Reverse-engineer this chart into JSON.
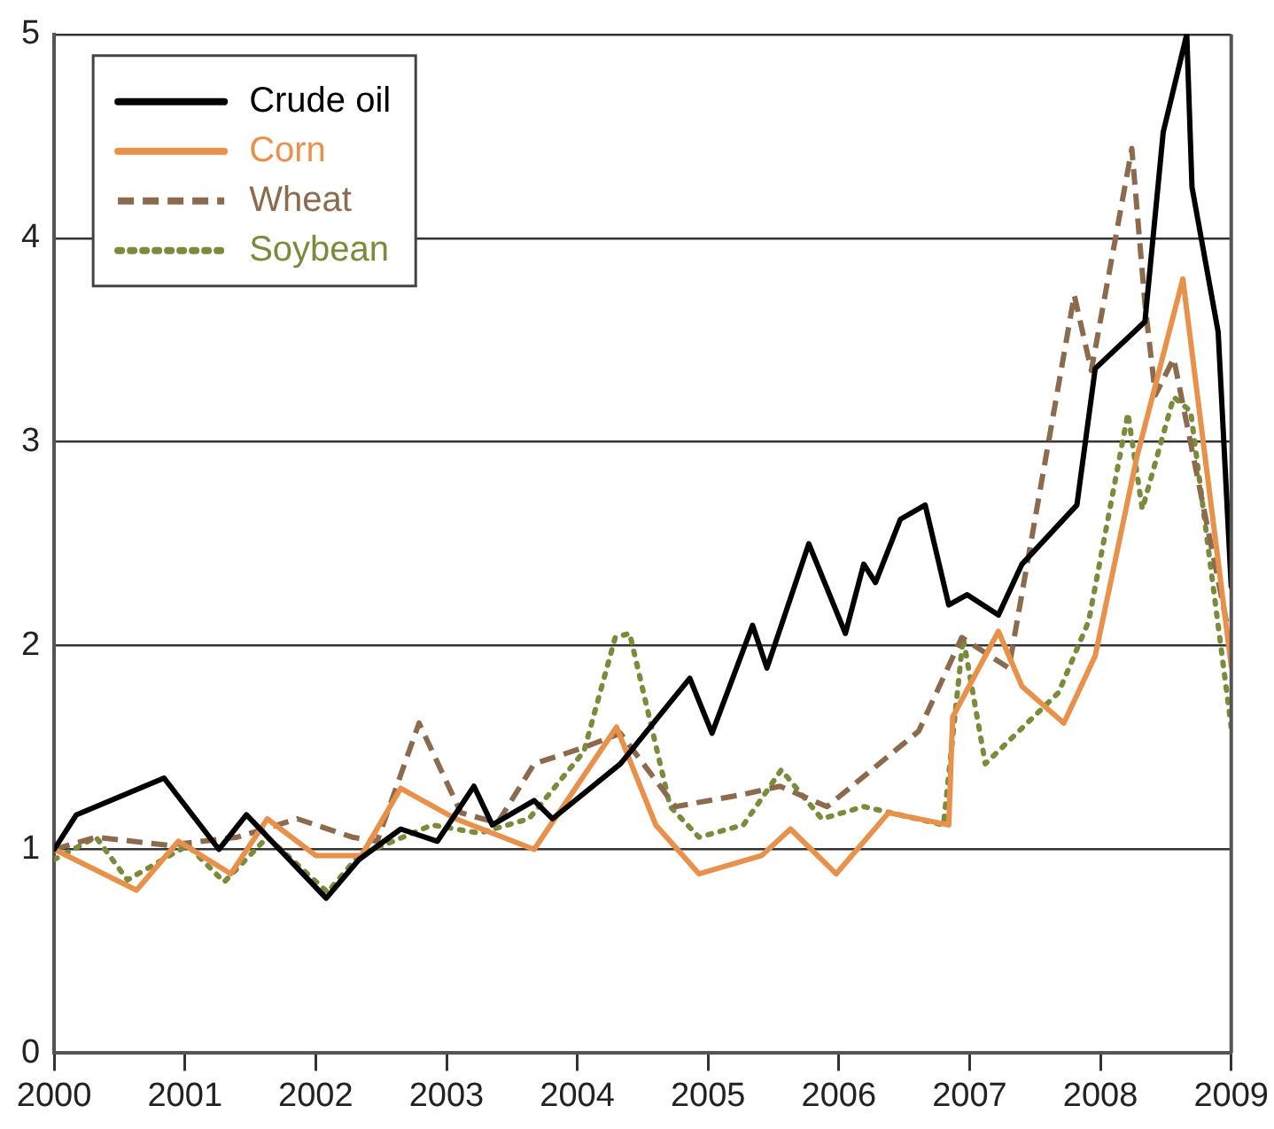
{
  "chart_data": {
    "type": "line",
    "xlim": [
      2000,
      2009
    ],
    "xticks": [
      2000,
      2001,
      2002,
      2003,
      2004,
      2005,
      2006,
      2007,
      2008,
      2009
    ],
    "ylim": [
      0,
      5
    ],
    "yticks": [
      0,
      1,
      2,
      3,
      4,
      5
    ],
    "grid": "y",
    "legend": "top left",
    "marker": "none",
    "series": [
      {
        "name": "Crude oil",
        "color": "#000000",
        "line_style": "solid",
        "x": [
          2000.0,
          2000.17,
          2000.84,
          2001.26,
          2001.47,
          2002.08,
          2002.33,
          2002.65,
          2002.93,
          2003.21,
          2003.35,
          2003.67,
          2003.81,
          2004.33,
          2004.86,
          2005.03,
          2005.34,
          2005.45,
          2005.77,
          2006.05,
          2006.19,
          2006.28,
          2006.47,
          2006.66,
          2006.84,
          2006.98,
          2007.22,
          2007.4,
          2007.82,
          2007.96,
          2008.34,
          2008.48,
          2008.66,
          2008.7,
          2008.9,
          2009.0
        ],
        "values": [
          1.0,
          1.17,
          1.35,
          1.0,
          1.17,
          0.76,
          0.95,
          1.1,
          1.04,
          1.31,
          1.12,
          1.24,
          1.15,
          1.42,
          1.84,
          1.57,
          2.1,
          1.89,
          2.5,
          2.06,
          2.4,
          2.31,
          2.62,
          2.69,
          2.2,
          2.25,
          2.15,
          2.4,
          2.69,
          3.36,
          3.59,
          4.52,
          5.0,
          4.25,
          3.54,
          2.29
        ]
      },
      {
        "name": "Corn",
        "color": "#e8914a",
        "line_style": "solid",
        "x": [
          2000.0,
          2000.63,
          2000.95,
          2001.35,
          2001.63,
          2002.0,
          2002.35,
          2002.65,
          2003.07,
          2003.67,
          2004.3,
          2004.6,
          2004.93,
          2005.41,
          2005.63,
          2005.98,
          2006.38,
          2006.84,
          2006.87,
          2007.22,
          2007.4,
          2007.72,
          2007.96,
          2008.28,
          2008.63,
          2009.0
        ],
        "values": [
          1.0,
          0.8,
          1.04,
          0.88,
          1.15,
          0.97,
          0.97,
          1.3,
          1.15,
          1.0,
          1.6,
          1.12,
          0.88,
          0.97,
          1.1,
          0.88,
          1.18,
          1.12,
          1.65,
          2.07,
          1.8,
          1.62,
          1.95,
          2.93,
          3.8,
          1.9
        ]
      },
      {
        "name": "Wheat",
        "color": "#8b6a4e",
        "line_style": "dashed",
        "x": [
          2000.0,
          2000.32,
          2000.87,
          2001.4,
          2001.86,
          2002.28,
          2002.47,
          2002.79,
          2003.11,
          2003.39,
          2003.67,
          2004.05,
          2004.33,
          2004.75,
          2005.27,
          2005.55,
          2005.91,
          2006.61,
          2006.94,
          2007.3,
          2007.8,
          2007.93,
          2008.24,
          2008.34,
          2008.42,
          2008.56,
          2009.0
        ],
        "values": [
          1.0,
          1.06,
          1.02,
          1.06,
          1.15,
          1.06,
          1.04,
          1.62,
          1.18,
          1.13,
          1.42,
          1.5,
          1.57,
          1.21,
          1.27,
          1.31,
          1.21,
          1.58,
          2.04,
          1.89,
          3.72,
          3.35,
          4.44,
          3.68,
          3.23,
          3.41,
          2.0
        ]
      },
      {
        "name": "Soybean",
        "color": "#7a8c3c",
        "line_style": "dotted",
        "x": [
          2000.0,
          2000.32,
          2000.56,
          2001.02,
          2001.3,
          2001.63,
          2002.09,
          2002.33,
          2002.89,
          2003.25,
          2003.63,
          2004.05,
          2004.29,
          2004.4,
          2004.71,
          2004.93,
          2005.27,
          2005.56,
          2005.87,
          2006.19,
          2006.8,
          2006.95,
          2007.12,
          2007.68,
          2007.91,
          2008.21,
          2008.32,
          2008.56,
          2008.69,
          2009.0
        ],
        "values": [
          0.95,
          1.06,
          0.85,
          1.02,
          0.84,
          1.06,
          0.79,
          0.97,
          1.12,
          1.08,
          1.15,
          1.48,
          2.04,
          2.06,
          1.21,
          1.06,
          1.12,
          1.39,
          1.15,
          1.21,
          1.12,
          2.04,
          1.42,
          1.77,
          2.12,
          3.14,
          2.67,
          3.22,
          3.15,
          1.6
        ]
      }
    ]
  }
}
